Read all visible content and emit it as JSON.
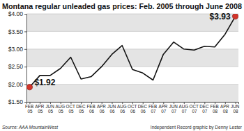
{
  "chart_data": {
    "type": "line",
    "title": "Montana regular unleaded gas prices: Feb. 2005 through June 2008",
    "categories": [
      "FEB 05",
      "APR 05",
      "JUN 05",
      "AUG 05",
      "OCT 05",
      "DEC 05",
      "FEB 06",
      "APR 06",
      "JUN 06",
      "AUG 06",
      "OCT 06",
      "DEC 06",
      "FEB 07",
      "APR 07",
      "JUN 07",
      "AUG 07",
      "OCT 07",
      "DEC 07",
      "FEB 08",
      "APR 08",
      "JUN 08"
    ],
    "values": [
      1.92,
      2.25,
      2.25,
      2.45,
      2.77,
      2.15,
      2.22,
      2.5,
      2.85,
      3.1,
      2.42,
      2.32,
      2.12,
      2.85,
      3.2,
      3.0,
      2.97,
      3.08,
      3.06,
      3.42,
      3.93
    ],
    "color": "#111111",
    "ylim": [
      1.5,
      4.0
    ],
    "yticks": [
      {
        "value": 1.5,
        "label": "$1.50"
      },
      {
        "value": 2.0,
        "label": "$2.00"
      },
      {
        "value": 2.5,
        "label": "$2.50"
      },
      {
        "value": 3.0,
        "label": "$3.00"
      },
      {
        "value": 3.5,
        "label": "$3.50"
      },
      {
        "value": 4.0,
        "label": "$4.00"
      }
    ],
    "grid": true,
    "marker": "endpoints",
    "annotations": [
      "$1.92",
      "$3.93"
    ],
    "source": "Source: AAA MountainWest",
    "credit": "Independent Record graphic by Denny Lester"
  }
}
